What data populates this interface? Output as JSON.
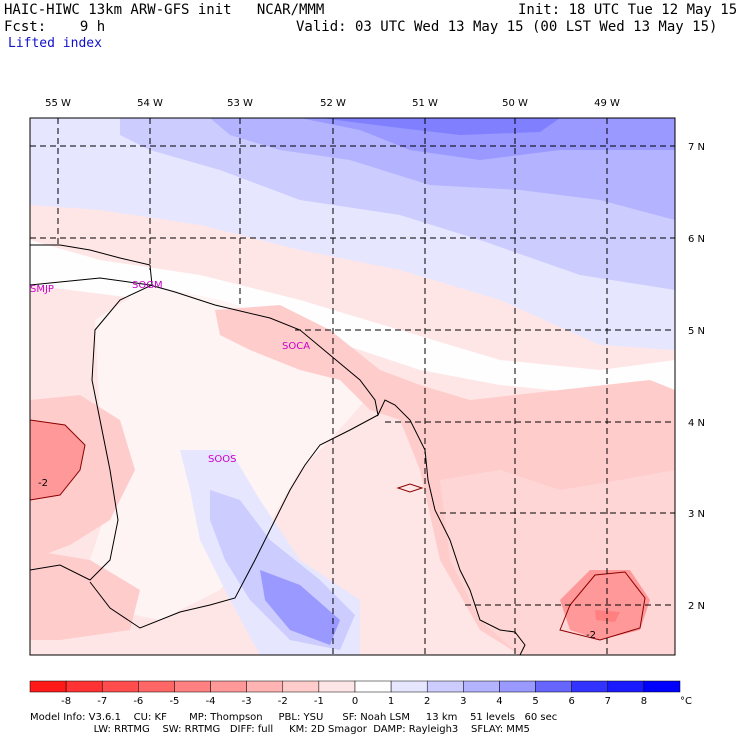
{
  "header": {
    "title": "HAIC-HIWC 13km ARW-GFS init   NCAR/MMM",
    "init": "Init: 18 UTC Tue 12 May 15",
    "fcst": "Fcst:    9 h",
    "valid": "Valid: 03 UTC Wed 13 May 15 (00 LST Wed 13 May 15)",
    "field": "Lifted index"
  },
  "map": {
    "lon_labels": [
      "55 W",
      "54 W",
      "53 W",
      "52 W",
      "51 W",
      "50 W",
      "49 W"
    ],
    "lat_labels": [
      "7 N",
      "6 N",
      "5 N",
      "4 N",
      "3 N",
      "2 N"
    ],
    "stations": [
      "SMJP",
      "SOGM",
      "SOCA",
      "SOOS"
    ],
    "contour_labels": [
      "-2",
      "-2"
    ]
  },
  "colorbar": {
    "ticks": [
      "-8",
      "-7",
      "-6",
      "-5",
      "-4",
      "-3",
      "-2",
      "-1",
      "0",
      "1",
      "2",
      "3",
      "4",
      "5",
      "6",
      "7",
      "8"
    ],
    "unit": "°C",
    "colors": [
      "#ff1a1a",
      "#ff3333",
      "#ff4d4d",
      "#ff6666",
      "#ff8080",
      "#ff9999",
      "#ffb3b3",
      "#ffcccc",
      "#ffe6e6",
      "#fefefe",
      "#e6e6ff",
      "#ccccff",
      "#b3b3ff",
      "#9999ff",
      "#6666ff",
      "#3333ff",
      "#1a1aff",
      "#0000ff"
    ]
  },
  "footer": {
    "line1": "Model Info: V3.6.1    CU: KF       MP: Thompson     PBL: YSU      SF: Noah LSM     13 km    51 levels   60 sec",
    "line2": "                    LW: RRTMG    SW: RRTMG   DIFF: full     KM: 2D Smagor  DAMP: Rayleigh3    SFLAY: MM5"
  },
  "colors": {
    "coast": "#000000",
    "station": "#cc00cc",
    "contour": "#8b0000",
    "grid": "#000000"
  }
}
